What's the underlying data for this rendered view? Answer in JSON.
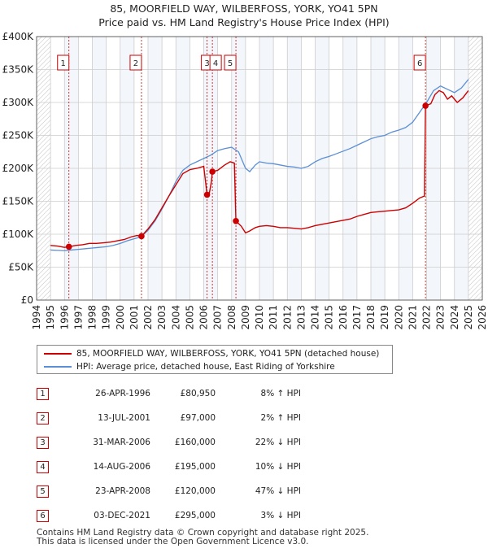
{
  "title_line1": "85, MOORFIELD WAY, WILBERFOSS, YORK, YO41 5PN",
  "title_line2": "Price paid vs. HM Land Registry's House Price Index (HPI)",
  "colors": {
    "property": "#cc0000",
    "hpi": "#5b8fd4",
    "shade": "#e8eef8",
    "grid": "#cccccc",
    "hatch": "#999999"
  },
  "chart_data": {
    "type": "line",
    "title": "85, MOORFIELD WAY, WILBERFOSS, YORK, YO41 5PN — Price paid vs. HM Land Registry's House Price Index (HPI)",
    "xlim": [
      1994,
      2026
    ],
    "ylim": [
      0,
      400000
    ],
    "y_ticks": [
      {
        "value": 0,
        "label": "£0"
      },
      {
        "value": 50000,
        "label": "£50K"
      },
      {
        "value": 100000,
        "label": "£100K"
      },
      {
        "value": 150000,
        "label": "£150K"
      },
      {
        "value": 200000,
        "label": "£200K"
      },
      {
        "value": 250000,
        "label": "£250K"
      },
      {
        "value": 300000,
        "label": "£300K"
      },
      {
        "value": 350000,
        "label": "£350K"
      },
      {
        "value": 400000,
        "label": "£400K"
      }
    ],
    "x_ticks": [
      "1994",
      "1995",
      "1996",
      "1997",
      "1998",
      "1999",
      "2000",
      "2001",
      "2002",
      "2003",
      "2004",
      "2005",
      "2006",
      "2007",
      "2008",
      "2009",
      "2010",
      "2011",
      "2012",
      "2013",
      "2014",
      "2015",
      "2016",
      "2017",
      "2018",
      "2019",
      "2020",
      "2021",
      "2022",
      "2023",
      "2024",
      "2025",
      "2026"
    ],
    "data_start": 1995.0,
    "data_end": 2025.0,
    "series": [
      {
        "name": "85, MOORFIELD WAY, WILBERFOSS, YORK, YO41 5PN (detached house)",
        "color": "#cc0000",
        "points": [
          [
            1995.0,
            83000
          ],
          [
            1995.5,
            82000
          ],
          [
            1996.0,
            80000
          ],
          [
            1996.32,
            80950
          ],
          [
            1996.8,
            83000
          ],
          [
            1997.3,
            84000
          ],
          [
            1997.8,
            86000
          ],
          [
            1998.3,
            86000
          ],
          [
            1998.8,
            87000
          ],
          [
            1999.3,
            88000
          ],
          [
            1999.8,
            90000
          ],
          [
            2000.3,
            92000
          ],
          [
            2000.8,
            96000
          ],
          [
            2001.2,
            98000
          ],
          [
            2001.53,
            97000
          ],
          [
            2002.0,
            108000
          ],
          [
            2002.5,
            122000
          ],
          [
            2003.0,
            140000
          ],
          [
            2003.5,
            158000
          ],
          [
            2004.0,
            175000
          ],
          [
            2004.5,
            192000
          ],
          [
            2005.0,
            198000
          ],
          [
            2005.5,
            200000
          ],
          [
            2006.0,
            203000
          ],
          [
            2006.24,
            160000
          ],
          [
            2006.4,
            162000
          ],
          [
            2006.55,
            180000
          ],
          [
            2006.62,
            195000
          ],
          [
            2007.0,
            197000
          ],
          [
            2007.5,
            205000
          ],
          [
            2007.9,
            210000
          ],
          [
            2008.2,
            208000
          ],
          [
            2008.31,
            120000
          ],
          [
            2008.7,
            112000
          ],
          [
            2009.0,
            102000
          ],
          [
            2009.3,
            105000
          ],
          [
            2009.7,
            110000
          ],
          [
            2010.0,
            112000
          ],
          [
            2010.5,
            113000
          ],
          [
            2011.0,
            112000
          ],
          [
            2011.5,
            110000
          ],
          [
            2012.0,
            110000
          ],
          [
            2012.5,
            109000
          ],
          [
            2013.0,
            108000
          ],
          [
            2013.5,
            110000
          ],
          [
            2014.0,
            113000
          ],
          [
            2014.5,
            115000
          ],
          [
            2015.0,
            117000
          ],
          [
            2015.5,
            119000
          ],
          [
            2016.0,
            121000
          ],
          [
            2016.5,
            123000
          ],
          [
            2017.0,
            127000
          ],
          [
            2017.5,
            130000
          ],
          [
            2018.0,
            133000
          ],
          [
            2018.5,
            134000
          ],
          [
            2019.0,
            135000
          ],
          [
            2019.5,
            136000
          ],
          [
            2020.0,
            137000
          ],
          [
            2020.5,
            140000
          ],
          [
            2021.0,
            147000
          ],
          [
            2021.5,
            155000
          ],
          [
            2021.85,
            158000
          ],
          [
            2021.92,
            295000
          ],
          [
            2022.3,
            298000
          ],
          [
            2022.6,
            312000
          ],
          [
            2022.9,
            318000
          ],
          [
            2023.2,
            315000
          ],
          [
            2023.5,
            305000
          ],
          [
            2023.8,
            310000
          ],
          [
            2024.2,
            300000
          ],
          [
            2024.6,
            307000
          ],
          [
            2025.0,
            318000
          ]
        ]
      },
      {
        "name": "HPI: Average price, detached house, East Riding of Yorkshire",
        "color": "#5b8fd4",
        "points": [
          [
            1995.0,
            76000
          ],
          [
            1995.5,
            75500
          ],
          [
            1996.0,
            75000
          ],
          [
            1996.5,
            76000
          ],
          [
            1997.0,
            77000
          ],
          [
            1997.5,
            78000
          ],
          [
            1998.0,
            79000
          ],
          [
            1998.5,
            80000
          ],
          [
            1999.0,
            81000
          ],
          [
            1999.5,
            83000
          ],
          [
            2000.0,
            86000
          ],
          [
            2000.5,
            90000
          ],
          [
            2001.0,
            93000
          ],
          [
            2001.5,
            96000
          ],
          [
            2002.0,
            106000
          ],
          [
            2002.5,
            120000
          ],
          [
            2003.0,
            138000
          ],
          [
            2003.5,
            158000
          ],
          [
            2004.0,
            180000
          ],
          [
            2004.5,
            197000
          ],
          [
            2005.0,
            205000
          ],
          [
            2005.5,
            210000
          ],
          [
            2006.0,
            215000
          ],
          [
            2006.5,
            220000
          ],
          [
            2007.0,
            227000
          ],
          [
            2007.5,
            230000
          ],
          [
            2008.0,
            232000
          ],
          [
            2008.5,
            225000
          ],
          [
            2009.0,
            200000
          ],
          [
            2009.3,
            195000
          ],
          [
            2009.7,
            205000
          ],
          [
            2010.0,
            210000
          ],
          [
            2010.5,
            208000
          ],
          [
            2011.0,
            207000
          ],
          [
            2011.5,
            205000
          ],
          [
            2012.0,
            203000
          ],
          [
            2012.5,
            202000
          ],
          [
            2013.0,
            200000
          ],
          [
            2013.5,
            203000
          ],
          [
            2014.0,
            210000
          ],
          [
            2014.5,
            215000
          ],
          [
            2015.0,
            218000
          ],
          [
            2015.5,
            222000
          ],
          [
            2016.0,
            226000
          ],
          [
            2016.5,
            230000
          ],
          [
            2017.0,
            235000
          ],
          [
            2017.5,
            240000
          ],
          [
            2018.0,
            245000
          ],
          [
            2018.5,
            248000
          ],
          [
            2019.0,
            250000
          ],
          [
            2019.5,
            255000
          ],
          [
            2020.0,
            258000
          ],
          [
            2020.5,
            262000
          ],
          [
            2021.0,
            270000
          ],
          [
            2021.5,
            285000
          ],
          [
            2022.0,
            300000
          ],
          [
            2022.5,
            318000
          ],
          [
            2023.0,
            325000
          ],
          [
            2023.5,
            320000
          ],
          [
            2024.0,
            315000
          ],
          [
            2024.5,
            322000
          ],
          [
            2025.0,
            335000
          ]
        ]
      }
    ],
    "sales": [
      {
        "num": "1",
        "x": 1996.32,
        "price": 80950
      },
      {
        "num": "2",
        "x": 2001.53,
        "price": 97000
      },
      {
        "num": "3",
        "x": 2006.24,
        "price": 160000
      },
      {
        "num": "4",
        "x": 2006.62,
        "price": 195000
      },
      {
        "num": "5",
        "x": 2008.31,
        "price": 120000
      },
      {
        "num": "6",
        "x": 2021.92,
        "price": 295000
      }
    ]
  },
  "legend": {
    "property_label": "85, MOORFIELD WAY, WILBERFOSS, YORK, YO41 5PN (detached house)",
    "hpi_label": "HPI: Average price, detached house, East Riding of Yorkshire"
  },
  "table": [
    {
      "num": "1",
      "date": "26-APR-1996",
      "price": "£80,950",
      "hpi": "8% ↑ HPI"
    },
    {
      "num": "2",
      "date": "13-JUL-2001",
      "price": "£97,000",
      "hpi": "2% ↑ HPI"
    },
    {
      "num": "3",
      "date": "31-MAR-2006",
      "price": "£160,000",
      "hpi": "22% ↓ HPI"
    },
    {
      "num": "4",
      "date": "14-AUG-2006",
      "price": "£195,000",
      "hpi": "10% ↓ HPI"
    },
    {
      "num": "5",
      "date": "23-APR-2008",
      "price": "£120,000",
      "hpi": "47% ↓ HPI"
    },
    {
      "num": "6",
      "date": "03-DEC-2021",
      "price": "£295,000",
      "hpi": "3% ↓ HPI"
    }
  ],
  "footer_line1": "Contains HM Land Registry data © Crown copyright and database right 2025.",
  "footer_line2": "This data is licensed under the Open Government Licence v3.0."
}
